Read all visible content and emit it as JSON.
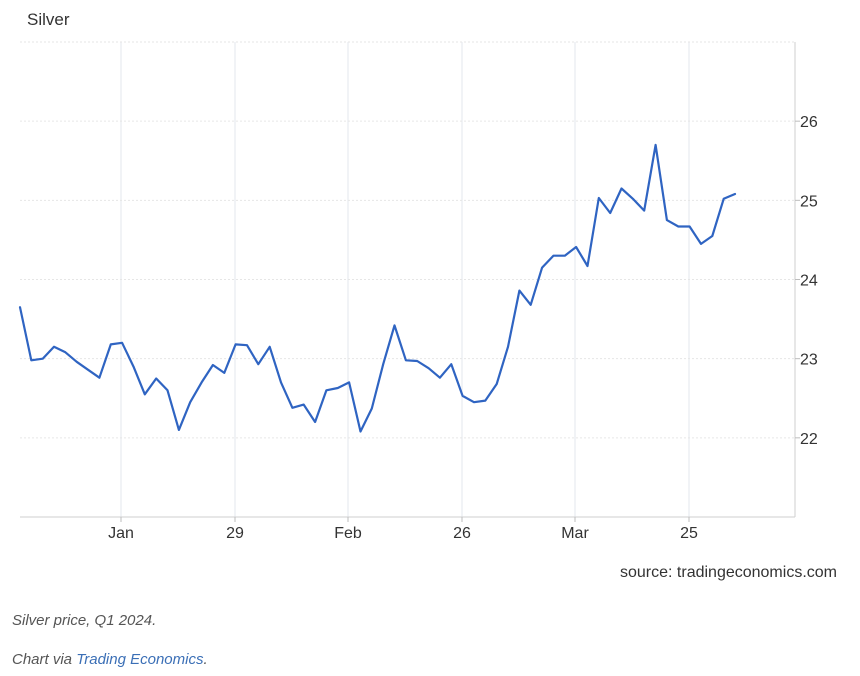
{
  "chart_data": {
    "type": "line",
    "title": "Silver",
    "source": "source: tradingeconomics.com",
    "x_ticks": [
      "Jan",
      "29",
      "Feb",
      "26",
      "Mar",
      "25"
    ],
    "y_ticks": [
      22,
      23,
      24,
      25,
      26
    ],
    "ylim": [
      21.0,
      27.0
    ],
    "grid": true,
    "line_color": "#2f64c2",
    "series": [
      {
        "values": [
          23.65,
          22.98,
          23.0,
          23.15,
          23.08,
          22.96,
          22.86,
          22.76,
          23.18,
          23.2,
          22.9,
          22.55,
          22.75,
          22.6,
          22.1,
          22.45,
          22.7,
          22.92,
          22.82,
          23.18,
          23.17,
          22.93,
          23.15,
          22.7,
          22.38,
          22.42,
          22.2,
          22.6,
          22.63,
          22.7,
          22.08,
          22.37,
          22.93,
          23.42,
          22.98,
          22.97,
          22.88,
          22.76,
          22.93,
          22.53,
          22.45,
          22.47,
          22.68,
          23.15,
          23.86,
          23.68,
          24.15,
          24.3,
          24.3,
          24.41,
          24.17,
          25.03,
          24.84,
          25.15,
          25.02,
          24.87,
          25.7,
          24.75,
          24.67,
          24.67,
          24.45,
          24.55,
          25.02,
          25.08
        ]
      }
    ]
  },
  "captions": {
    "line1": "Silver price, Q1 2024.",
    "line2_prefix": "Chart via ",
    "line2_link": "Trading Economics",
    "line2_suffix": "."
  }
}
